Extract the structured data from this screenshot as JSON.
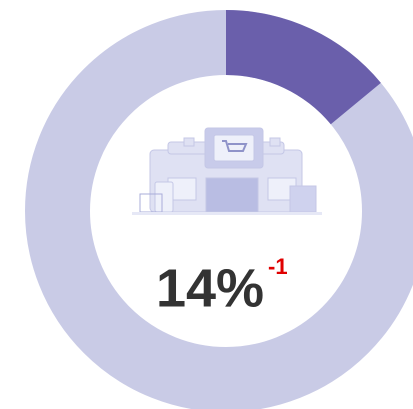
{
  "chart_data": {
    "type": "donut",
    "values": [
      14
    ],
    "value_labels": [
      "14%"
    ],
    "delta": "-1",
    "color": "#6a5fab",
    "track_color": "#c9cbe6",
    "delta_color": "#e00000"
  }
}
